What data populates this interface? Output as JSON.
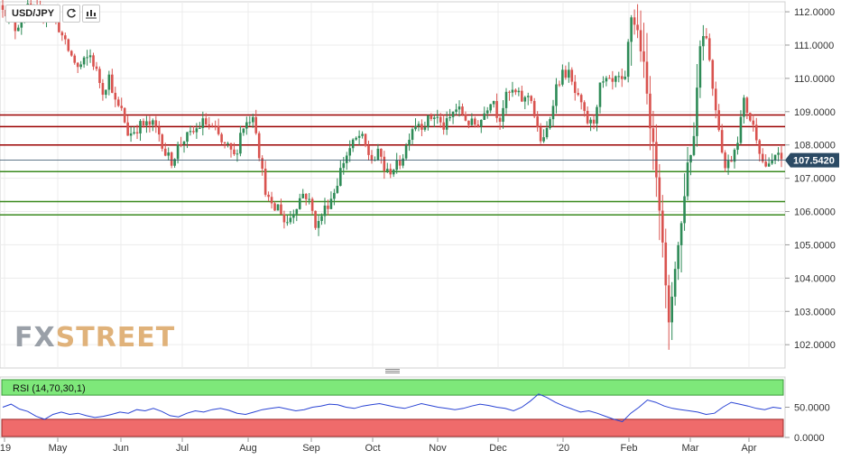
{
  "toolbar": {
    "symbol": "USD/JPY",
    "refresh_icon": "refresh-icon",
    "bar_type_icon": "candlestick-icon"
  },
  "watermark": {
    "part1": "FX",
    "part2": "STREET"
  },
  "rsi_label": "RSI (14,70,30,1)",
  "colors": {
    "up": "#2e8b57",
    "down": "#d9534f",
    "resistance": "#9b0000",
    "support": "#3a8a1f",
    "rsi_line": "#2a44d4",
    "rsi_overbought": "#7ee87a",
    "rsi_oversold": "#ef6b6b",
    "price_tag": "#2b4a64"
  },
  "chart_data": {
    "type": "candlestick",
    "title": "USD/JPY",
    "ylim": [
      101.3,
      112.3
    ],
    "yticks": [
      "112.0000",
      "111.0000",
      "110.0000",
      "109.0000",
      "108.0000",
      "107.0000",
      "106.0000",
      "105.0000",
      "104.0000",
      "103.0000",
      "102.0000"
    ],
    "x_labels": [
      "'19",
      "May",
      "Jun",
      "Jul",
      "Aug",
      "Sep",
      "Oct",
      "Nov",
      "Dec",
      "'20",
      "Feb",
      "Mar",
      "Apr"
    ],
    "last_price": "107.5420",
    "last_price_value": 107.542,
    "horizontal_levels": {
      "resistance": [
        108.9,
        108.55,
        108.0
      ],
      "support": [
        107.2,
        106.3,
        105.9
      ]
    },
    "price_path": [
      [
        0,
        112.2
      ],
      [
        2,
        111.5
      ],
      [
        4,
        112.1
      ],
      [
        6,
        111.9
      ],
      [
        8,
        112.0
      ],
      [
        10,
        111.0
      ],
      [
        12,
        110.3
      ],
      [
        14,
        110.7
      ],
      [
        16,
        109.6
      ],
      [
        17,
        110.1
      ],
      [
        18,
        109.2
      ],
      [
        19,
        109.0
      ],
      [
        20,
        108.3
      ],
      [
        22,
        108.6
      ],
      [
        24,
        108.6
      ],
      [
        25,
        108.3
      ],
      [
        26,
        107.7
      ],
      [
        27,
        107.5
      ],
      [
        28,
        108.0
      ],
      [
        29,
        108.2
      ],
      [
        30,
        108.3
      ],
      [
        32,
        108.7
      ],
      [
        34,
        108.4
      ],
      [
        35,
        108.0
      ],
      [
        36,
        107.9
      ],
      [
        37,
        107.6
      ],
      [
        38,
        108.5
      ],
      [
        39,
        108.7
      ],
      [
        40,
        109.0
      ],
      [
        41,
        107.5
      ],
      [
        42,
        106.5
      ],
      [
        43,
        106.0
      ],
      [
        44,
        106.2
      ],
      [
        45,
        105.6
      ],
      [
        46,
        105.9
      ],
      [
        47,
        106.3
      ],
      [
        48,
        106.6
      ],
      [
        49,
        106.2
      ],
      [
        50,
        105.5
      ],
      [
        51,
        106.0
      ],
      [
        52,
        106.3
      ],
      [
        53,
        106.7
      ],
      [
        54,
        107.4
      ],
      [
        55,
        107.8
      ],
      [
        56,
        108.1
      ],
      [
        57,
        108.3
      ],
      [
        58,
        107.8
      ],
      [
        59,
        107.5
      ],
      [
        60,
        107.8
      ],
      [
        61,
        107.1
      ],
      [
        62,
        107.3
      ],
      [
        63,
        107.4
      ],
      [
        64,
        107.8
      ],
      [
        65,
        108.5
      ],
      [
        66,
        108.7
      ],
      [
        67,
        108.6
      ],
      [
        68,
        108.8
      ],
      [
        69,
        108.9
      ],
      [
        70,
        108.5
      ],
      [
        71,
        108.7
      ],
      [
        72,
        109.1
      ],
      [
        73,
        109.0
      ],
      [
        74,
        108.7
      ],
      [
        75,
        108.6
      ],
      [
        76,
        108.7
      ],
      [
        77,
        109.1
      ],
      [
        78,
        109.5
      ],
      [
        79,
        108.7
      ],
      [
        80,
        109.4
      ],
      [
        81,
        109.6
      ],
      [
        82,
        109.5
      ],
      [
        83,
        109.3
      ],
      [
        84,
        109.6
      ],
      [
        85,
        108.5
      ],
      [
        86,
        108.0
      ],
      [
        87,
        108.7
      ],
      [
        88,
        109.7
      ],
      [
        89,
        110.1
      ],
      [
        90,
        110.2
      ],
      [
        91,
        109.6
      ],
      [
        92,
        109.2
      ],
      [
        93,
        108.7
      ],
      [
        94,
        108.6
      ],
      [
        95,
        109.7
      ],
      [
        96,
        109.9
      ],
      [
        97,
        109.8
      ],
      [
        98,
        110.0
      ],
      [
        99,
        109.7
      ],
      [
        100,
        111.9
      ],
      [
        101,
        111.5
      ],
      [
        102,
        110.5
      ],
      [
        103,
        108.8
      ],
      [
        104,
        107.3
      ],
      [
        105,
        105.4
      ],
      [
        106,
        102.4
      ],
      [
        107,
        104.3
      ],
      [
        108,
        105.5
      ],
      [
        109,
        107.4
      ],
      [
        110,
        108.1
      ],
      [
        111,
        111.1
      ],
      [
        112,
        111.4
      ],
      [
        113,
        109.8
      ],
      [
        114,
        108.6
      ],
      [
        115,
        107.3
      ],
      [
        116,
        107.6
      ],
      [
        117,
        108.2
      ],
      [
        118,
        109.3
      ],
      [
        119,
        108.8
      ],
      [
        120,
        108.3
      ],
      [
        121,
        107.5
      ],
      [
        122,
        107.3
      ],
      [
        123,
        107.7
      ],
      [
        124,
        107.54
      ]
    ],
    "rsi": {
      "ylim": [
        0,
        100
      ],
      "yticks": [
        "50.0000",
        "0.0000"
      ],
      "levels": [
        70,
        30
      ],
      "values": [
        50,
        55,
        47,
        43,
        35,
        30,
        38,
        42,
        38,
        40,
        36,
        33,
        35,
        38,
        42,
        40,
        46,
        44,
        48,
        43,
        36,
        34,
        40,
        44,
        42,
        46,
        48,
        45,
        40,
        38,
        42,
        46,
        48,
        50,
        47,
        44,
        46,
        50,
        52,
        55,
        54,
        50,
        48,
        52,
        54,
        56,
        53,
        50,
        48,
        52,
        56,
        53,
        50,
        48,
        46,
        48,
        52,
        55,
        53,
        50,
        48,
        44,
        50,
        60,
        72,
        66,
        58,
        52,
        47,
        42,
        44,
        40,
        35,
        30,
        26,
        40,
        50,
        62,
        58,
        52,
        48,
        46,
        44,
        42,
        38,
        40,
        50,
        58,
        55,
        52,
        48,
        46,
        50,
        48
      ]
    }
  }
}
